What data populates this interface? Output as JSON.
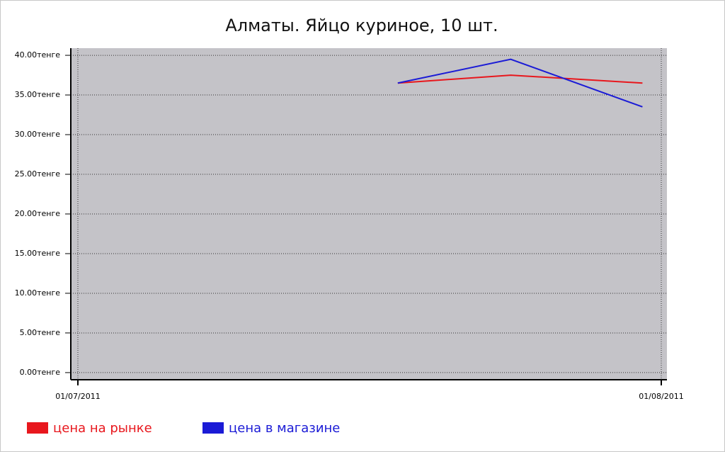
{
  "chart_data": {
    "type": "line",
    "title": "Алматы. Яйцо куриное, 10 шт.",
    "x": [
      "2011-07-18",
      "2011-07-24",
      "2011-07-31"
    ],
    "series": [
      {
        "name": "цена на рынке",
        "color": "#e8171d",
        "values": [
          36.5,
          37.5,
          36.5
        ]
      },
      {
        "name": "цена в магазине",
        "color": "#1b1bd6",
        "values": [
          36.5,
          39.5,
          33.5
        ]
      }
    ],
    "xlim": [
      "2011-07-01",
      "2011-08-01"
    ],
    "xticks": [
      {
        "value": "2011-07-01",
        "label": "01/07/2011"
      },
      {
        "value": "2011-08-01",
        "label": "01/08/2011"
      }
    ],
    "ylim": [
      -0.9,
      40.9
    ],
    "yticks": [
      {
        "value": 0,
        "label": "0.00тенге"
      },
      {
        "value": 5,
        "label": "5.00тенге"
      },
      {
        "value": 10,
        "label": "10.00тенге"
      },
      {
        "value": 15,
        "label": "15.00тенге"
      },
      {
        "value": 20,
        "label": "20.00тенге"
      },
      {
        "value": 25,
        "label": "25.00тенге"
      },
      {
        "value": 30,
        "label": "30.00тенге"
      },
      {
        "value": 35,
        "label": "35.00тенге"
      },
      {
        "value": 40,
        "label": "40.00тенге"
      }
    ],
    "grid": true
  }
}
